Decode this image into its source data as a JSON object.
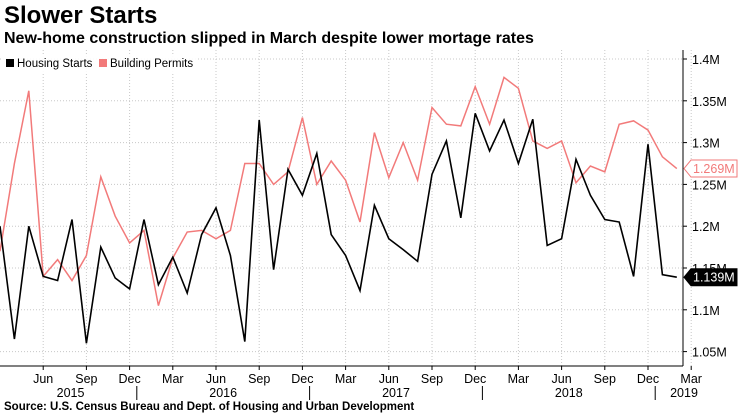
{
  "title": "Slower Starts",
  "subtitle": "New-home construction slipped in March despite lower mortage rates",
  "source": "Source: U.S. Census Bureau and Dept. of Housing and Urban Development",
  "colors": {
    "housing_starts": "#000000",
    "building_permits": "#f27a7a",
    "grid": "#c8c8c8",
    "axis": "#000000"
  },
  "chart_data": {
    "type": "line",
    "title": "Slower Starts",
    "xlabel": "",
    "ylabel": "",
    "ylim": [
      1.02,
      1.42
    ],
    "y_ticks": [
      1.05,
      1.1,
      1.15,
      1.2,
      1.25,
      1.3,
      1.35,
      1.4
    ],
    "y_tick_labels": [
      "1.05M",
      "1.1M",
      "1.15M",
      "1.2M",
      "1.25M",
      "1.3M",
      "1.35M",
      "1.4M"
    ],
    "x_start": {
      "year": 2015,
      "month": 3
    },
    "x_tick_labels": [
      {
        "label": "Jun",
        "month_index": 3
      },
      {
        "label": "Sep",
        "month_index": 6
      },
      {
        "label": "Dec",
        "month_index": 9
      },
      {
        "label": "Mar",
        "month_index": 12
      },
      {
        "label": "Jun",
        "month_index": 15
      },
      {
        "label": "Sep",
        "month_index": 18
      },
      {
        "label": "Dec",
        "month_index": 21
      },
      {
        "label": "Mar",
        "month_index": 24
      },
      {
        "label": "Jun",
        "month_index": 27
      },
      {
        "label": "Sep",
        "month_index": 30
      },
      {
        "label": "Dec",
        "month_index": 33
      },
      {
        "label": "Mar",
        "month_index": 36
      },
      {
        "label": "Jun",
        "month_index": 39
      },
      {
        "label": "Sep",
        "month_index": 42
      },
      {
        "label": "Dec",
        "month_index": 45
      },
      {
        "label": "Mar",
        "month_index": 48
      }
    ],
    "year_labels": [
      {
        "label": "2015",
        "center_index": 4.9
      },
      {
        "label": "2016",
        "center_index": 15.5
      },
      {
        "label": "2017",
        "center_index": 27.5
      },
      {
        "label": "2018",
        "center_index": 39.5
      },
      {
        "label": "2019",
        "center_index": 47.5
      }
    ],
    "year_boundaries": [
      9.5,
      21.5,
      33.5,
      45.5
    ],
    "legend": {
      "position": "top-left",
      "entries": [
        "Housing Starts",
        "Building Permits"
      ]
    },
    "series": [
      {
        "name": "Housing Starts",
        "color": "#000000",
        "end_label": "1.139M",
        "values": [
          1.2,
          1.065,
          1.2,
          1.14,
          1.135,
          1.208,
          1.06,
          1.175,
          1.138,
          1.125,
          1.208,
          1.13,
          1.163,
          1.12,
          1.19,
          1.222,
          1.165,
          1.062,
          1.327,
          1.148,
          1.268,
          1.237,
          1.287,
          1.19,
          1.165,
          1.123,
          1.225,
          1.185,
          1.172,
          1.158,
          1.262,
          1.302,
          1.21,
          1.335,
          1.29,
          1.327,
          1.275,
          1.328,
          1.177,
          1.185,
          1.28,
          1.237,
          1.208,
          1.205,
          1.14,
          1.298,
          1.142,
          1.139
        ]
      },
      {
        "name": "Building Permits",
        "color": "#f27a7a",
        "end_label": "1.269M",
        "values": [
          1.17,
          1.275,
          1.362,
          1.14,
          1.16,
          1.135,
          1.165,
          1.259,
          1.212,
          1.18,
          1.195,
          1.105,
          1.162,
          1.193,
          1.195,
          1.185,
          1.195,
          1.275,
          1.275,
          1.25,
          1.265,
          1.33,
          1.25,
          1.278,
          1.255,
          1.205,
          1.312,
          1.258,
          1.3,
          1.255,
          1.342,
          1.322,
          1.32,
          1.367,
          1.322,
          1.378,
          1.365,
          1.302,
          1.293,
          1.302,
          1.252,
          1.272,
          1.265,
          1.322,
          1.326,
          1.315,
          1.283,
          1.269
        ]
      }
    ]
  }
}
